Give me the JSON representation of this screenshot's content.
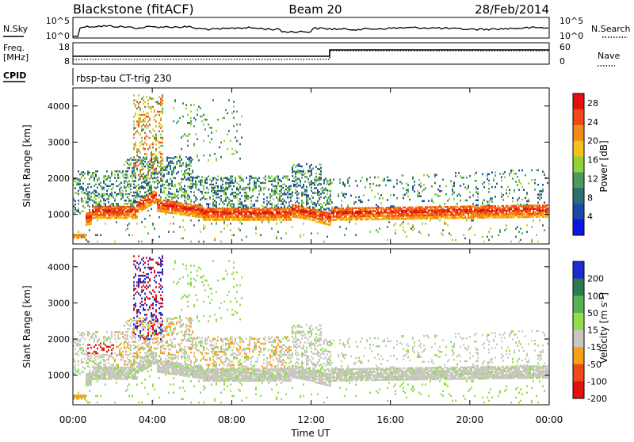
{
  "header": {
    "station": "Blackstone (fitACF)",
    "beam": "Beam 20",
    "date": "28/Feb/2014"
  },
  "labels": {
    "nsky": "N.Sky",
    "nsearch": "N.Search",
    "freq": "Freq.",
    "mhz": "[MHz]",
    "nave": "Nave",
    "cpid": "CPID",
    "cpid_value": "rbsp-tau CT-trig 230",
    "noise_top": "10^5",
    "noise_bot": "10^0",
    "freq_top": "18",
    "freq_bot": "8",
    "nave_top": "60",
    "nave_bot": "0",
    "power_label": "Power [dB]",
    "velocity_label": "Velocity [m s",
    "velocity_exp": "-1",
    "velocity_close": "]"
  },
  "colors": {
    "power": [
      "#0a17e0",
      "#1c4aa8",
      "#2e6e70",
      "#4c9a5c",
      "#8fd23a",
      "#f2c21a",
      "#f28a18",
      "#f04a14",
      "#e41010"
    ],
    "velocity": [
      "#e41010",
      "#f04818",
      "#f8a018",
      "#c8c8c0",
      "#90dc4a",
      "#58b050",
      "#2c7c50",
      "#1c2cd0"
    ]
  },
  "chart_data": [
    {
      "type": "heatmap",
      "panel": "power",
      "xlabel": "Time UT",
      "ylabel": "Slant Range [km]",
      "x_ticks": [
        "00:00",
        "04:00",
        "08:00",
        "12:00",
        "16:00",
        "20:00",
        "00:00"
      ],
      "x_range_hours": [
        0,
        24
      ],
      "y_ticks": [
        1000,
        2000,
        3000,
        4000
      ],
      "ylim": [
        180,
        4500
      ],
      "colorbar_label": "Power [dB]",
      "colorbar_ticks": [
        "4",
        "8",
        "12",
        "16",
        "20",
        "24",
        "28"
      ],
      "colorbar_range": [
        0,
        30
      ]
    },
    {
      "type": "heatmap",
      "panel": "velocity",
      "xlabel": "Time UT",
      "ylabel": "Slant Range [km]",
      "x_ticks": [
        "00:00",
        "04:00",
        "08:00",
        "12:00",
        "16:00",
        "20:00",
        "00:00"
      ],
      "x_range_hours": [
        0,
        24
      ],
      "y_ticks": [
        1000,
        2000,
        3000,
        4000
      ],
      "ylim": [
        180,
        4500
      ],
      "colorbar_label": "Velocity [m s-1]",
      "colorbar_ticks": [
        "200",
        "100",
        "50",
        "15",
        "-15",
        "-50",
        "-100",
        "-200"
      ]
    }
  ]
}
